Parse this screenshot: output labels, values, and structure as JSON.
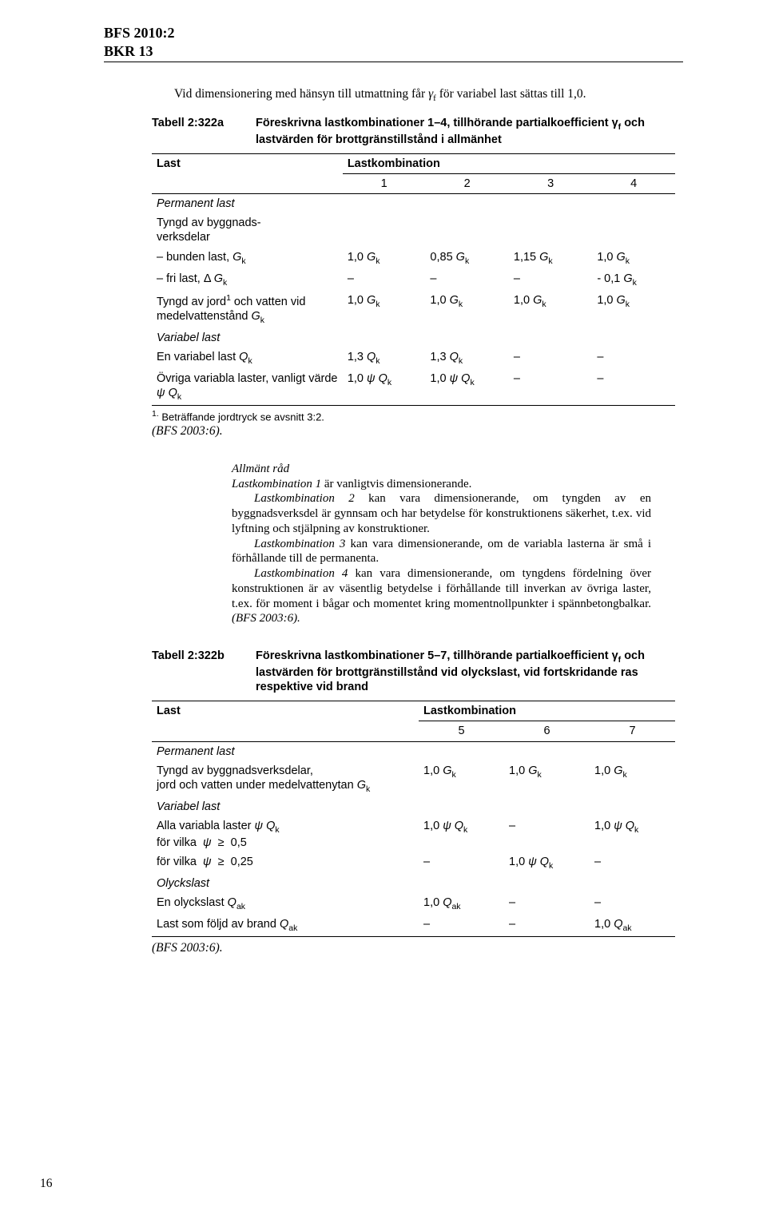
{
  "header": {
    "line1": "BFS 2010:2",
    "line2": "BKR 13"
  },
  "intro": {
    "text_a": "Vid dimensionering med hänsyn till utmattning får ",
    "gamma": "γ",
    "gamma_sub": "f",
    "text_b": " för variabel last sättas till 1,0."
  },
  "tableA": {
    "label": "Tabell 2:322a",
    "desc_a": "Föreskrivna lastkombinationer 1–4, tillhörande partialkoefficient γ",
    "desc_sub": "f",
    "desc_b": " och lastvärden för brottgränstillstånd i allmänhet",
    "col_last": "Last",
    "col_comb": "Lastkombination",
    "cols": [
      "1",
      "2",
      "3",
      "4"
    ],
    "rows": [
      {
        "label_i": "Permanent last"
      },
      {
        "label": "Tyngd av byggnads-\nverksdelar"
      },
      {
        "label_html": "– bunden last, <i>G</i><span class='sub'>k</span>",
        "c": [
          "1,0 <i>G</i><span class='sub'>k</span>",
          "0,85 <i>G</i><span class='sub'>k</span>",
          "1,15 <i>G</i><span class='sub'>k</span>",
          "1,0 <i>G</i><span class='sub'>k</span>"
        ]
      },
      {
        "label_html": "– fri last, Δ <i>G</i><span class='sub'>k</span>",
        "c": [
          "–",
          "–",
          "–",
          "- 0,1 <i>G</i><span class='sub'>k</span>"
        ]
      },
      {
        "label_html": "Tyngd av jord<span class='sup'>1</span> och vatten vid medelvattenstånd <i>G</i><span class='sub'>k</span>",
        "c": [
          "1,0 <i>G</i><span class='sub'>k</span>",
          "1,0 <i>G</i><span class='sub'>k</span>",
          "1,0 <i>G</i><span class='sub'>k</span>",
          "1,0 <i>G</i><span class='sub'>k</span>"
        ]
      },
      {
        "label_i": "Variabel last"
      },
      {
        "label_html": "En variabel last <i>Q</i><span class='sub'>k</span>",
        "c": [
          "1,3 <i>Q</i><span class='sub'>k</span>",
          "1,3 <i>Q</i><span class='sub'>k</span>",
          "–",
          "–"
        ]
      },
      {
        "label_html": "Övriga variabla laster, vanligt värde <i>ψ Q</i><span class='sub'>k</span>",
        "c": [
          "1,0 <i>ψ Q</i><span class='sub'>k</span>",
          "1,0 <i>ψ Q</i><span class='sub'>k</span>",
          "–",
          "–"
        ]
      }
    ],
    "footnote_sup": "1.",
    "footnote": " Beträffande jordtryck se avsnitt 3:2.",
    "post_ref": "(BFS 2003:6)."
  },
  "advice": {
    "heading": "Allmänt råd",
    "p1_i": "Lastkombination 1",
    "p1": " är vanligtvis dimensionerande.",
    "p2_i": "Lastkombination 2",
    "p2": " kan vara dimensionerande, om tyngden av en byggnadsverksdel är gynnsam och har betydelse för konstruktionens säkerhet, t.ex. vid lyftning och stjälpning av konstruktioner.",
    "p3_i": "Lastkombination 3",
    "p3": " kan vara dimensionerande, om de variabla lasterna är små i förhållande till de permanenta.",
    "p4_i": "Lastkombination 4",
    "p4a": " kan vara dimensionerande, om tyngdens fördelning över konstruktionen är av väsentlig betydelse i förhållande till inverkan av övriga laster, t.ex. för moment i bågar och momentet kring momentnollpunkter i spännbetongbalkar. ",
    "p4_ref": "(BFS 2003:6)."
  },
  "tableB": {
    "label": "Tabell 2:322b",
    "desc_a": "Föreskrivna lastkombinationer 5–7, tillhörande partialkoefficient γ",
    "desc_sub": "f",
    "desc_b": " och lastvärden för brottgränstillstånd vid olyckslast, vid fortskridande ras respektive vid brand",
    "col_last": "Last",
    "col_comb": "Lastkombination",
    "cols": [
      "5",
      "6",
      "7"
    ],
    "rows": [
      {
        "label_i": "Permanent last"
      },
      {
        "label_html": "Tyngd av byggnadsverksdelar,<br>jord och vatten under medelvattenytan <i>G</i><span class='sub'>k</span>",
        "c": [
          "1,0 <i>G</i><span class='sub'>k</span>",
          "1,0 <i>G</i><span class='sub'>k</span>",
          "1,0 <i>G</i><span class='sub'>k</span>"
        ]
      },
      {
        "label_i": "Variabel last"
      },
      {
        "label_html": "Alla variabla laster <i>ψ Q</i><span class='sub'>k</span><br>för vilka &nbsp;<i>ψ</i> &nbsp;≥&nbsp; 0,5",
        "c": [
          "1,0 <i>ψ Q</i><span class='sub'>k</span>",
          "–",
          "1,0 <i>ψ Q</i><span class='sub'>k</span>"
        ]
      },
      {
        "label_html": "för vilka &nbsp;<i>ψ</i> &nbsp;≥&nbsp; 0,25",
        "c": [
          "–",
          "1,0 <i>ψ Q</i><span class='sub'>k</span>",
          "–"
        ]
      },
      {
        "label_i": "Olyckslast"
      },
      {
        "label_html": "En olyckslast <i>Q</i><span class='sub'>ak</span>",
        "c": [
          "1,0 <i>Q</i><span class='sub'>ak</span>",
          "–",
          "–"
        ]
      },
      {
        "label_html": "Last som följd av brand <i>Q</i><span class='sub'>ak</span>",
        "c": [
          "–",
          "–",
          "1,0 <i>Q</i><span class='sub'>ak</span>"
        ]
      }
    ],
    "post_ref": "(BFS 2003:6)."
  },
  "page_number": "16"
}
